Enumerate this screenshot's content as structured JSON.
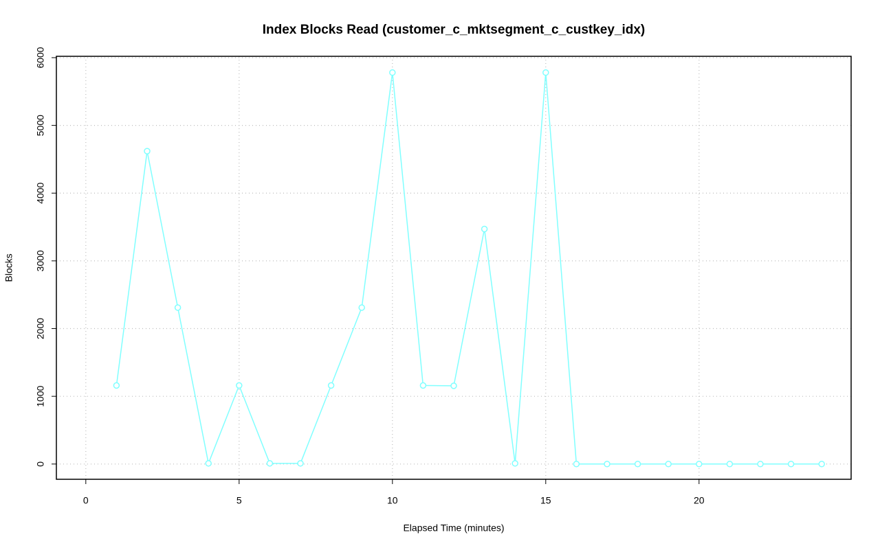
{
  "chart_data": {
    "type": "line",
    "title": "Index Blocks Read (customer_c_mktsegment_c_custkey_idx)",
    "x_label": "Elapsed Time (minutes)",
    "y_label": "Blocks",
    "x": [
      1,
      2,
      3,
      4,
      5,
      6,
      7,
      8,
      9,
      10,
      11,
      12,
      13,
      14,
      15,
      16,
      17,
      18,
      19,
      20,
      21,
      22,
      23,
      24
    ],
    "series": [
      {
        "name": "Blocks",
        "color": "#80ffff",
        "values": [
          1160,
          4620,
          2310,
          10,
          1160,
          10,
          10,
          1160,
          2310,
          5780,
          1160,
          1155,
          3470,
          10,
          5780,
          0,
          0,
          0,
          0,
          0,
          0,
          0,
          0,
          0
        ]
      }
    ],
    "xlim": [
      -0.96,
      24.96
    ],
    "xticks": [
      0,
      5,
      10,
      15,
      20
    ],
    "ylim": [
      -225,
      6020
    ],
    "yticks": [
      0,
      1000,
      2000,
      3000,
      4000,
      5000,
      6000
    ],
    "grid": true
  }
}
